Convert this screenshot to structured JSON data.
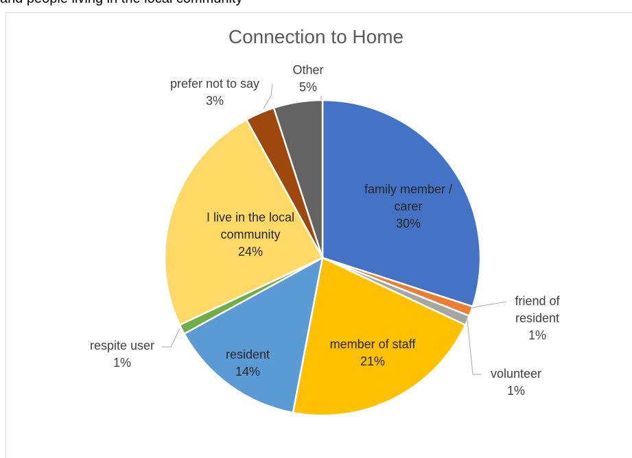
{
  "header_text": "and people living in the local community",
  "chart_data": {
    "type": "pie",
    "title": "Connection to Home",
    "categories": [
      "family member / carer",
      "friend of resident",
      "volunteer",
      "member of staff",
      "resident",
      "respite user",
      "I live in the local community",
      "prefer not to say",
      "Other"
    ],
    "values": [
      30,
      1,
      1,
      21,
      14,
      1,
      24,
      3,
      5
    ],
    "value_labels": [
      "30%",
      "1%",
      "1%",
      "21%",
      "14%",
      "1%",
      "24%",
      "3%",
      "5%"
    ],
    "colors": [
      "#4472c4",
      "#ed7d31",
      "#a5a5a5",
      "#ffc000",
      "#5b9bd5",
      "#70ad47",
      "#ffd966",
      "#9e480e",
      "#636363"
    ]
  }
}
